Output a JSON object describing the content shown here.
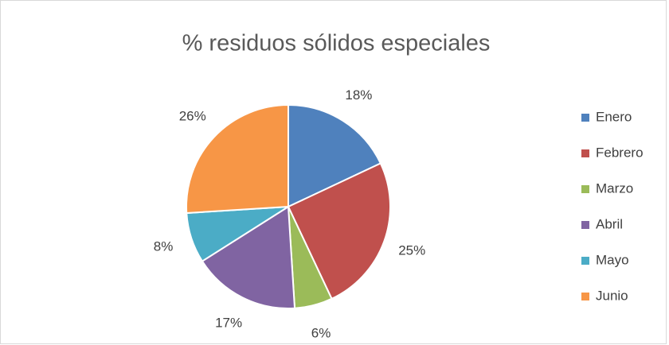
{
  "chart_data": {
    "type": "pie",
    "title": "% residuos sólidos especiales",
    "categories": [
      "Enero",
      "Febrero",
      "Marzo",
      "Abril",
      "Mayo",
      "Junio"
    ],
    "values": [
      18,
      25,
      6,
      17,
      8,
      26
    ],
    "value_labels": [
      "18%",
      "25%",
      "6%",
      "17%",
      "8%",
      "26%"
    ],
    "colors": [
      "#4f81bd",
      "#c0504d",
      "#9bbb59",
      "#8064a2",
      "#4bacc6",
      "#f79646"
    ],
    "legend": "right"
  }
}
